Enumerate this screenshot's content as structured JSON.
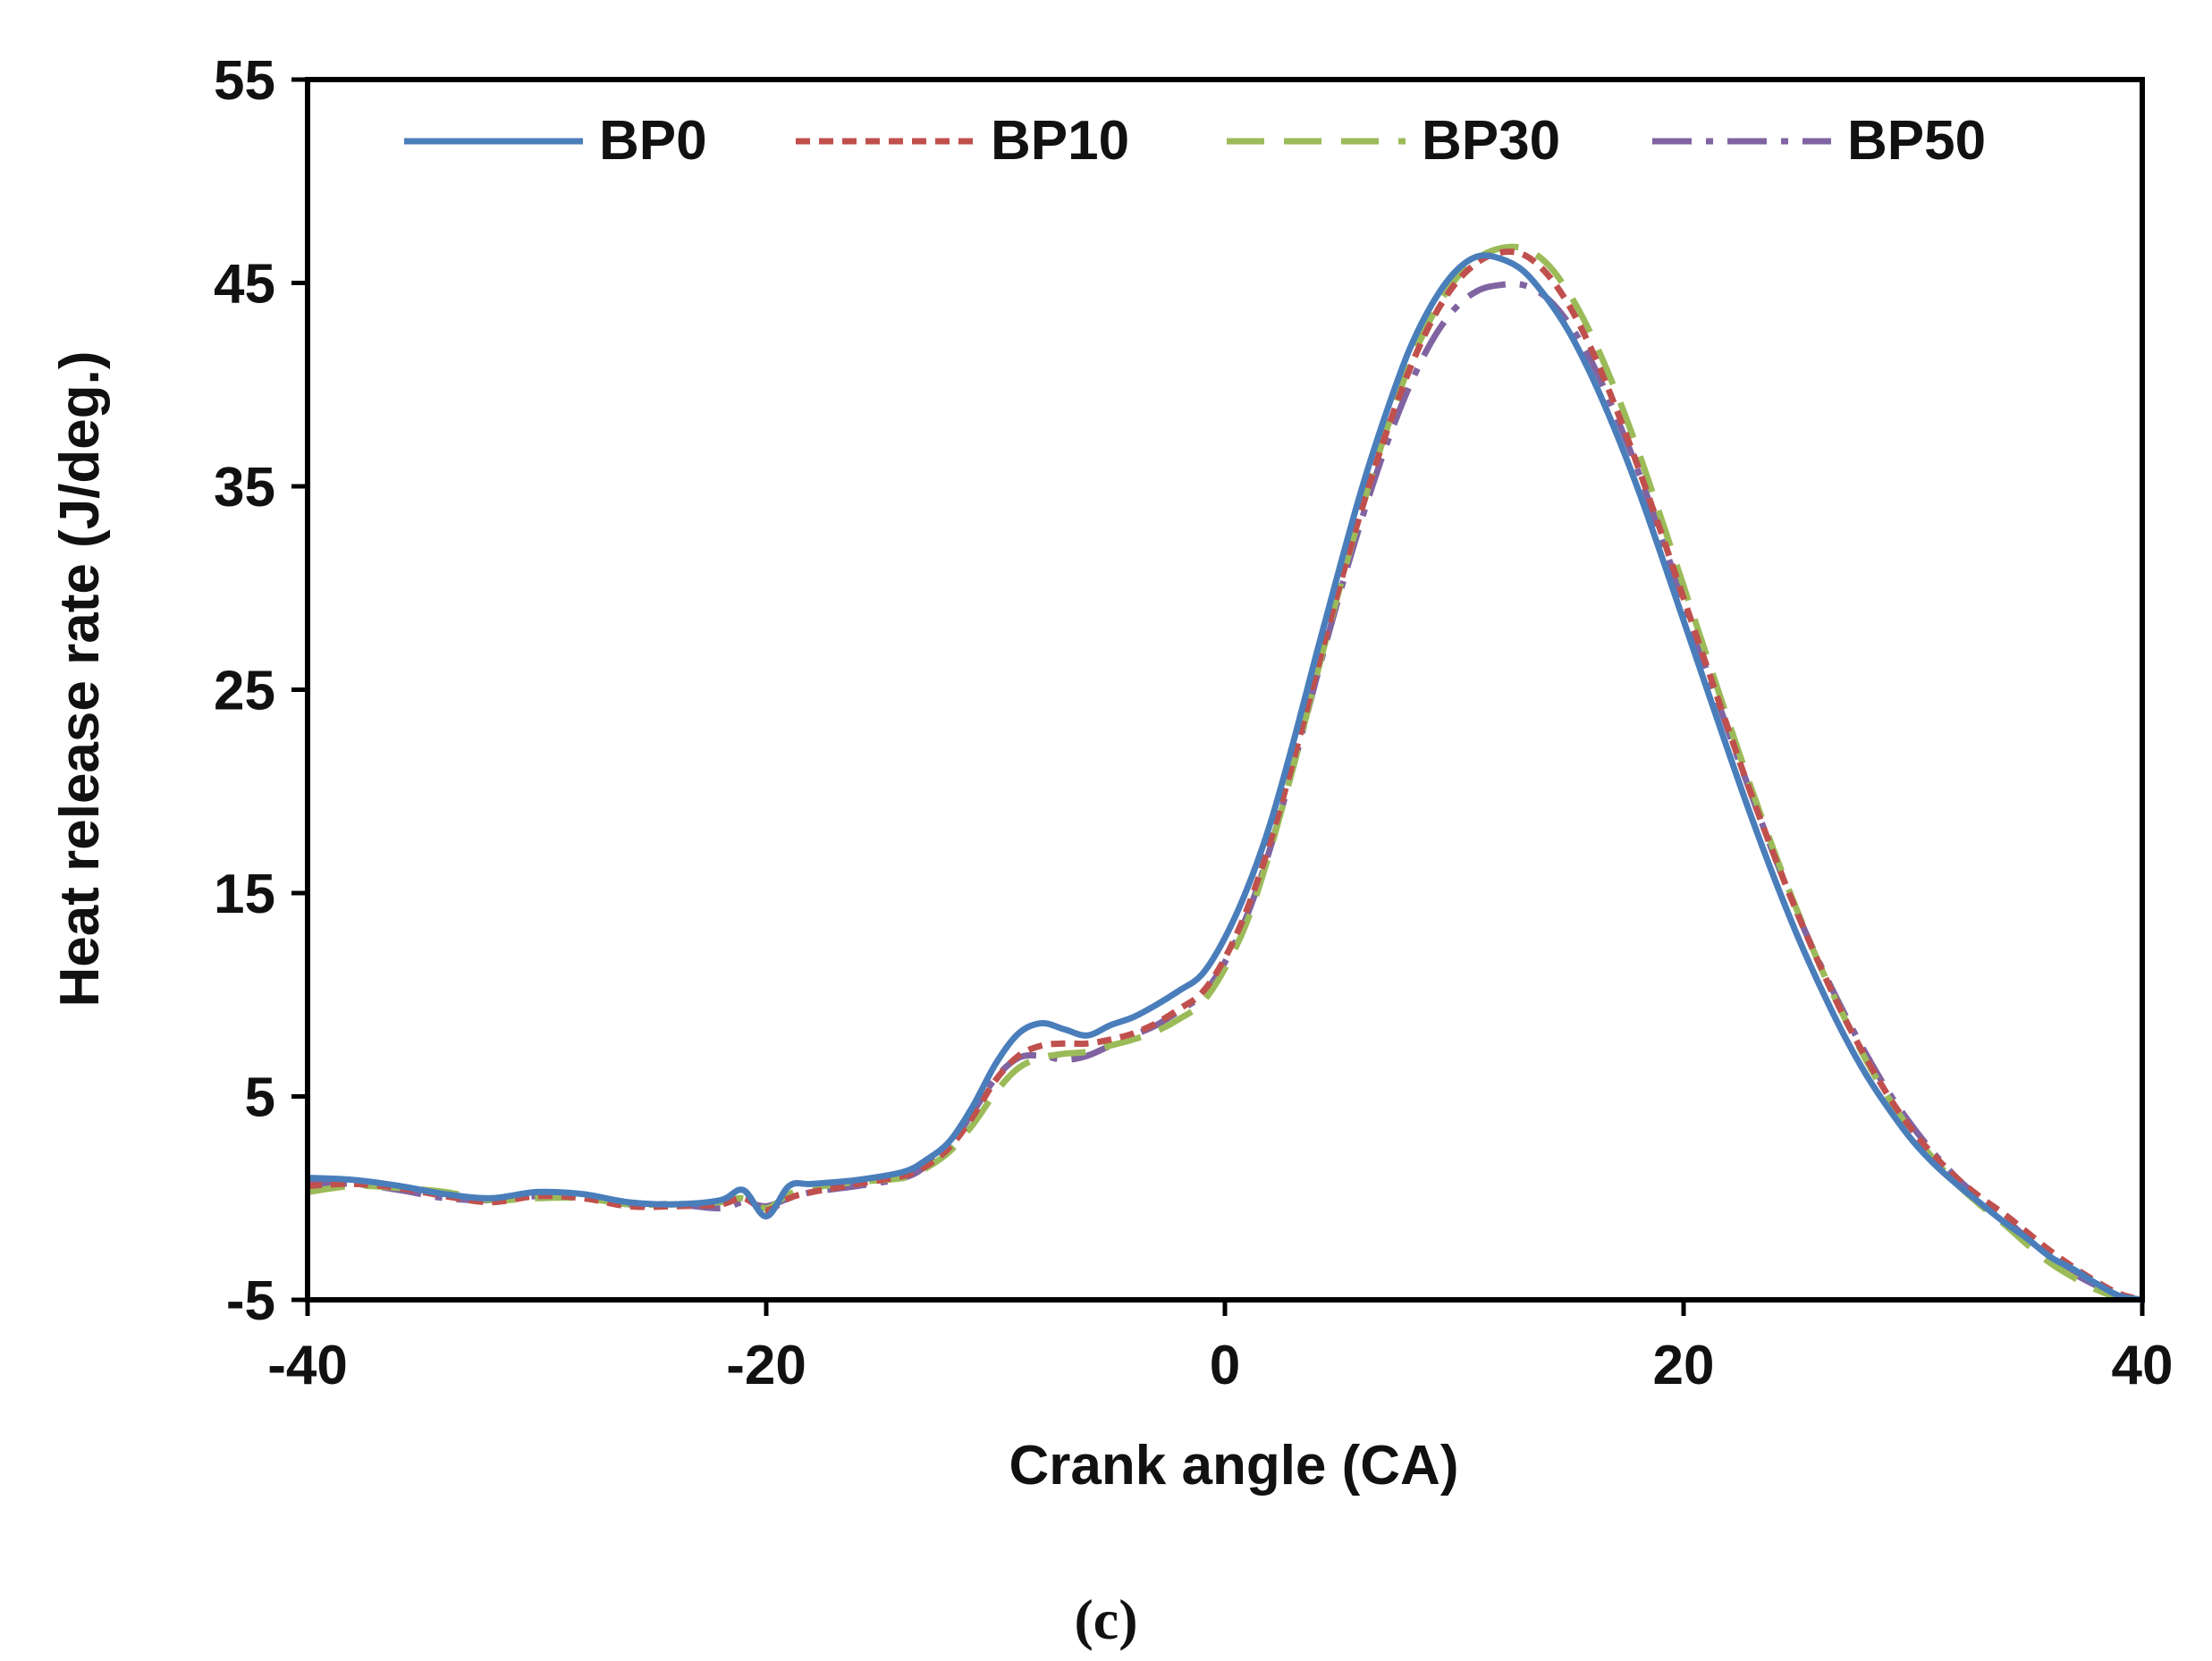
{
  "panel_label": "(c)",
  "chart_data": {
    "type": "line",
    "title": "",
    "xlabel": "Crank angle (CA)",
    "ylabel": "Heat release rate (J/deg.)",
    "xlim": [
      -40,
      40
    ],
    "ylim": [
      -5,
      55
    ],
    "xticks": [
      -40,
      -20,
      0,
      20,
      40
    ],
    "yticks": [
      -5,
      5,
      15,
      25,
      35,
      45,
      55
    ],
    "xtick_labels": [
      "-40",
      "-20",
      "0",
      "20",
      "40"
    ],
    "ytick_labels": [
      "-5",
      "5",
      "15",
      "25",
      "35",
      "45",
      "55"
    ],
    "grid": false,
    "legend_position": "top",
    "x": [
      -40,
      -38,
      -36,
      -34,
      -32,
      -30,
      -28,
      -26,
      -24,
      -22,
      -21,
      -20,
      -19,
      -18,
      -16,
      -14,
      -13,
      -12,
      -11,
      -10,
      -9,
      -8,
      -7,
      -6,
      -5,
      -4,
      -3,
      -2,
      -1,
      0,
      1,
      2,
      3,
      4,
      5,
      6,
      7,
      8,
      9,
      10,
      11,
      12,
      13,
      14,
      15,
      16,
      17,
      18,
      19,
      20,
      21,
      22,
      23,
      24,
      25,
      26,
      27,
      28,
      29,
      30,
      31,
      32,
      33,
      34,
      35,
      36,
      37,
      38,
      39,
      40
    ],
    "series": [
      {
        "name": "BP0",
        "color": "#4a7ebb",
        "dash": "solid",
        "values": [
          1.0,
          0.9,
          0.6,
          0.2,
          0.0,
          0.3,
          0.2,
          -0.2,
          -0.3,
          -0.1,
          0.4,
          -0.9,
          0.6,
          0.7,
          0.9,
          1.3,
          1.9,
          2.8,
          4.5,
          6.6,
          8.1,
          8.6,
          8.3,
          8.0,
          8.5,
          8.9,
          9.5,
          10.2,
          11.0,
          12.8,
          15.3,
          18.5,
          22.5,
          26.8,
          31.0,
          35.0,
          38.5,
          41.6,
          43.9,
          45.5,
          46.3,
          46.2,
          45.6,
          44.3,
          42.6,
          40.4,
          37.8,
          34.9,
          31.7,
          28.4,
          25.1,
          21.8,
          18.6,
          15.6,
          12.8,
          10.3,
          8.0,
          6.0,
          4.3,
          2.8,
          1.6,
          0.6,
          -0.3,
          -1.2,
          -2.0,
          -2.9,
          -3.5,
          -4.2,
          -4.8,
          -5.0
        ]
      },
      {
        "name": "BP10",
        "color": "#c0504d",
        "dash": "short",
        "values": [
          0.6,
          0.7,
          0.5,
          0.1,
          -0.2,
          0.1,
          0.0,
          -0.4,
          -0.4,
          -0.3,
          0.0,
          -0.6,
          0.0,
          0.3,
          0.7,
          1.1,
          1.6,
          2.5,
          4.0,
          5.8,
          7.0,
          7.5,
          7.6,
          7.6,
          7.8,
          8.1,
          8.6,
          9.3,
          10.1,
          11.8,
          14.3,
          17.6,
          21.6,
          25.9,
          30.1,
          34.0,
          37.5,
          40.6,
          43.1,
          44.9,
          46.0,
          46.5,
          46.4,
          45.5,
          43.9,
          41.7,
          39.0,
          36.0,
          32.8,
          29.5,
          26.2,
          22.9,
          19.7,
          16.7,
          13.9,
          11.3,
          8.9,
          6.8,
          4.9,
          3.3,
          2.0,
          0.9,
          0.0,
          -0.8,
          -1.7,
          -2.6,
          -3.4,
          -4.1,
          -4.7,
          -5.0
        ]
      },
      {
        "name": "BP30",
        "color": "#9bbb59",
        "dash": "long",
        "values": [
          0.3,
          0.6,
          0.5,
          0.3,
          -0.1,
          0.0,
          0.0,
          -0.3,
          -0.3,
          -0.2,
          0.0,
          -0.5,
          0.2,
          0.5,
          0.8,
          1.0,
          1.5,
          2.3,
          3.6,
          5.2,
          6.4,
          6.9,
          7.1,
          7.2,
          7.5,
          7.8,
          8.2,
          8.8,
          9.6,
          11.3,
          13.7,
          17.2,
          21.3,
          25.7,
          30.0,
          34.0,
          37.6,
          40.8,
          43.3,
          45.1,
          46.2,
          46.7,
          46.7,
          46.0,
          44.5,
          42.4,
          39.8,
          36.8,
          33.5,
          30.1,
          26.7,
          23.3,
          20.0,
          16.9,
          14.0,
          11.3,
          8.9,
          6.7,
          4.8,
          3.2,
          1.8,
          0.6,
          -0.4,
          -1.3,
          -2.3,
          -3.2,
          -3.9,
          -4.5,
          -4.9,
          -5.0
        ]
      },
      {
        "name": "BP50",
        "color": "#8064a2",
        "dash": "dashdot",
        "values": [
          0.7,
          0.7,
          0.4,
          0.0,
          -0.1,
          0.1,
          0.0,
          -0.3,
          -0.3,
          -0.5,
          -0.2,
          -0.4,
          0.0,
          0.3,
          0.6,
          1.0,
          1.6,
          2.6,
          4.2,
          5.9,
          6.9,
          7.0,
          6.8,
          7.0,
          7.5,
          8.0,
          8.5,
          9.2,
          10.0,
          11.6,
          14.0,
          17.3,
          21.3,
          25.6,
          29.7,
          33.5,
          36.9,
          39.8,
          42.1,
          43.7,
          44.6,
          44.9,
          44.9,
          44.3,
          43.0,
          41.1,
          38.6,
          35.8,
          32.6,
          29.3,
          26.0,
          22.8,
          19.7,
          16.7,
          13.9,
          11.4,
          9.1,
          7.0,
          5.1,
          3.5,
          2.1,
          0.9,
          -0.1,
          -1.0,
          -2.0,
          -2.9,
          -3.7,
          -4.3,
          -4.8,
          -5.0
        ]
      }
    ]
  }
}
